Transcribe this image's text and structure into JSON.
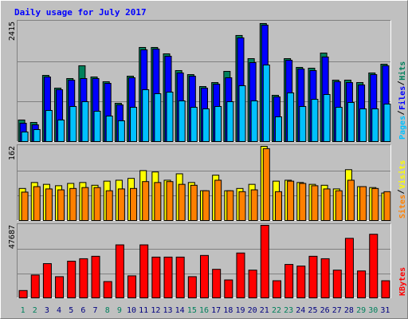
{
  "title": "Daily usage for July 2017",
  "chart_data": [
    {
      "type": "bar",
      "ylim": [
        0,
        2415
      ],
      "yticks": [
        2415
      ],
      "grid": [
        805,
        1610
      ],
      "series": [
        {
          "name": "Hits",
          "color": "#00805c",
          "values": [
            435,
            386,
            1336,
            1079,
            1272,
            1530,
            1304,
            1208,
            773,
            1320,
            1900,
            1900,
            1771,
            1433,
            1352,
            1111,
            1191,
            1417,
            2142,
            1674,
            2383,
            934,
            1674,
            1497,
            1481,
            1787,
            1240,
            1240,
            1191,
            1385,
            1562
          ]
        },
        {
          "name": "Files",
          "color": "#0000ff",
          "values": [
            370,
            338,
            1304,
            1047,
            1240,
            1272,
            1272,
            1175,
            741,
            1288,
            1852,
            1868,
            1723,
            1385,
            1320,
            1079,
            1159,
            1288,
            2093,
            1594,
            2351,
            902,
            1642,
            1465,
            1433,
            1707,
            1208,
            1191,
            1143,
            1352,
            1530
          ]
        },
        {
          "name": "Pages",
          "color": "#00c0ff",
          "values": [
            193,
            242,
            628,
            435,
            708,
            805,
            612,
            515,
            419,
            692,
            1047,
            966,
            998,
            821,
            692,
            660,
            708,
            805,
            1127,
            821,
            1546,
            499,
            982,
            708,
            853,
            950,
            692,
            789,
            660,
            660,
            757
          ]
        }
      ]
    },
    {
      "type": "bar",
      "ylim": [
        0,
        162
      ],
      "yticks": [
        162
      ],
      "grid": [
        54,
        108
      ],
      "series": [
        {
          "name": "Visits",
          "color": "#ffff00",
          "values": [
            70,
            83,
            79,
            76,
            81,
            83,
            77,
            86,
            88,
            92,
            109,
            106,
            88,
            102,
            83,
            65,
            99,
            65,
            70,
            79,
            162,
            86,
            88,
            83,
            79,
            77,
            69,
            111,
            74,
            72,
            60
          ]
        },
        {
          "name": "Sites",
          "color": "#ff8000",
          "values": [
            62,
            74,
            69,
            67,
            70,
            72,
            72,
            65,
            69,
            70,
            85,
            83,
            85,
            79,
            77,
            65,
            88,
            65,
            63,
            67,
            157,
            63,
            86,
            81,
            76,
            69,
            65,
            88,
            74,
            70,
            63
          ]
        }
      ]
    },
    {
      "type": "bar",
      "ylim": [
        0,
        47687
      ],
      "yticks": [
        47687
      ],
      "grid": [
        15896,
        31791
      ],
      "categories": [
        "1",
        "2",
        "3",
        "4",
        "5",
        "6",
        "7",
        "8",
        "9",
        "10",
        "11",
        "12",
        "13",
        "14",
        "15",
        "16",
        "17",
        "18",
        "19",
        "20",
        "21",
        "22",
        "23",
        "24",
        "25",
        "26",
        "27",
        "28",
        "29",
        "30",
        "31"
      ],
      "label_colors": [
        "#00805c",
        "#00805c",
        "#000080",
        "#000080",
        "#000080",
        "#000080",
        "#000080",
        "#00805c",
        "#00805c",
        "#000080",
        "#000080",
        "#000080",
        "#000080",
        "#000080",
        "#00805c",
        "#00805c",
        "#000080",
        "#000080",
        "#000080",
        "#000080",
        "#000080",
        "#00805c",
        "#00805c",
        "#000080",
        "#000080",
        "#000080",
        "#000080",
        "#000080",
        "#00805c",
        "#00805c",
        "#000080"
      ],
      "series": [
        {
          "name": "KBytes",
          "color": "#ff0000",
          "values": [
            4823,
            15000,
            22500,
            13930,
            24110,
            25720,
            27330,
            10720,
            34830,
            14470,
            34830,
            26790,
            26790,
            26790,
            13930,
            27870,
            18760,
            11790,
            29480,
            18220,
            47687,
            11260,
            21970,
            20900,
            27330,
            25720,
            18220,
            39120,
            17690,
            41800,
            11260
          ]
        }
      ]
    }
  ]
}
